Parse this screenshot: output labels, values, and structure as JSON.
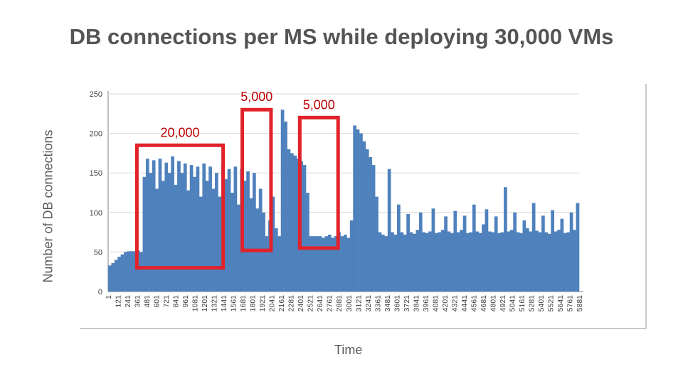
{
  "title": "DB connections per MS while deploying 30,000 VMs",
  "chart_data": {
    "type": "bar",
    "title": "DB connections per MS while deploying 30,000 VMs",
    "xlabel": "Time",
    "ylabel": "Number of DB connections",
    "ylim": [
      0,
      250
    ],
    "yticks": [
      0,
      50,
      100,
      150,
      200,
      250
    ],
    "grid": "horizontal",
    "xticks": [
      "1",
      "121",
      "241",
      "361",
      "481",
      "601",
      "721",
      "841",
      "961",
      "1081",
      "1201",
      "1321",
      "1441",
      "1561",
      "1681",
      "1801",
      "1921",
      "2041",
      "2161",
      "2281",
      "2401",
      "2521",
      "2641",
      "2761",
      "2881",
      "3001",
      "3121",
      "3241",
      "3361",
      "3481",
      "3601",
      "3721",
      "3841",
      "3961",
      "4081",
      "4201",
      "4321",
      "4441",
      "4561",
      "4681",
      "4801",
      "4921",
      "5041",
      "5161",
      "5281",
      "5401",
      "5521",
      "5641",
      "5761",
      "5881"
    ],
    "bar_color": "#4f81bd",
    "series": [
      {
        "x_step": 60,
        "values": [
          33,
          36,
          40,
          44,
          47,
          50,
          51,
          51,
          51,
          52,
          50,
          145,
          168,
          150,
          166,
          130,
          168,
          140,
          163,
          150,
          171,
          135,
          165,
          150,
          162,
          128,
          160,
          145,
          158,
          120,
          162,
          140,
          158,
          130,
          150,
          120,
          162,
          142,
          155,
          125,
          158,
          110,
          155,
          140,
          152,
          118,
          150,
          105,
          130,
          100,
          70,
          90,
          120,
          80,
          70,
          230,
          215,
          180,
          175,
          172,
          168,
          165,
          160,
          125,
          70,
          70,
          70,
          70,
          68,
          70,
          72,
          68,
          70,
          75,
          70,
          72,
          68,
          90,
          210,
          205,
          200,
          190,
          180,
          170,
          160,
          120,
          75,
          72,
          70,
          155,
          75,
          72,
          110,
          75,
          72,
          98,
          75,
          73,
          78,
          100,
          75,
          74,
          76,
          105,
          74,
          75,
          78,
          95,
          76,
          74,
          102,
          75,
          78,
          96,
          74,
          75,
          110,
          76,
          74,
          85,
          104,
          76,
          75,
          95,
          74,
          75,
          132,
          76,
          78,
          100,
          75,
          74,
          90,
          80,
          76,
          112,
          77,
          75,
          96,
          75,
          73,
          103,
          76,
          78,
          92,
          74,
          75,
          100,
          78,
          112
        ]
      }
    ],
    "annotations": [
      {
        "label": "20,000",
        "x_range": [
          361,
          1441
        ],
        "y_range": [
          30,
          185
        ]
      },
      {
        "label": "5,000",
        "x_range": [
          1681,
          2041
        ],
        "y_range": [
          52,
          230
        ]
      },
      {
        "label": "5,000",
        "x_range": [
          2401,
          2881
        ],
        "y_range": [
          55,
          220
        ]
      }
    ],
    "annotation_color": "#e2222a",
    "annotation_text_color": "#c00000"
  }
}
